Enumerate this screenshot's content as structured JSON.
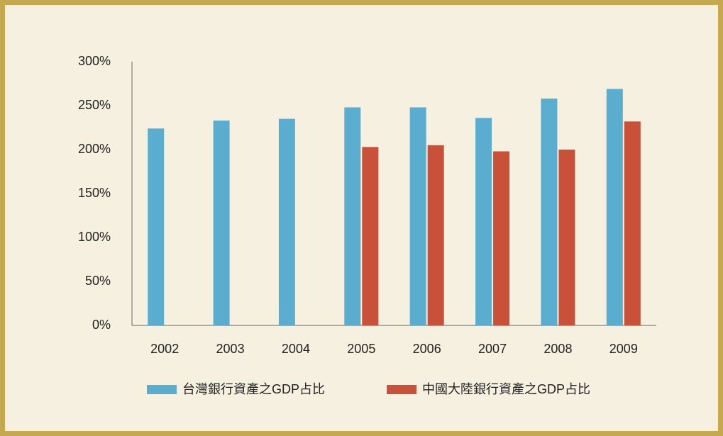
{
  "chart_data": {
    "type": "bar",
    "categories": [
      "2002",
      "2003",
      "2004",
      "2005",
      "2006",
      "2007",
      "2008",
      "2009"
    ],
    "series": [
      {
        "name": "台灣銀行資產之GDP占比",
        "color": "#5aadcf",
        "values": [
          224,
          233,
          235,
          248,
          248,
          236,
          258,
          269
        ]
      },
      {
        "name": "中國大陸銀行資產之GDP占比",
        "color": "#c9513a",
        "values": [
          null,
          null,
          null,
          203,
          205,
          198,
          200,
          232
        ]
      }
    ],
    "ylim": [
      0,
      300
    ],
    "yticks": [
      {
        "value": 0,
        "label": "0%"
      },
      {
        "value": 50,
        "label": "50%"
      },
      {
        "value": 100,
        "label": "100%"
      },
      {
        "value": 150,
        "label": "150%"
      },
      {
        "value": 200,
        "label": "200%"
      },
      {
        "value": 250,
        "label": "250%"
      },
      {
        "value": 300,
        "label": "300%"
      }
    ],
    "grid": false,
    "legend": "bottom"
  }
}
